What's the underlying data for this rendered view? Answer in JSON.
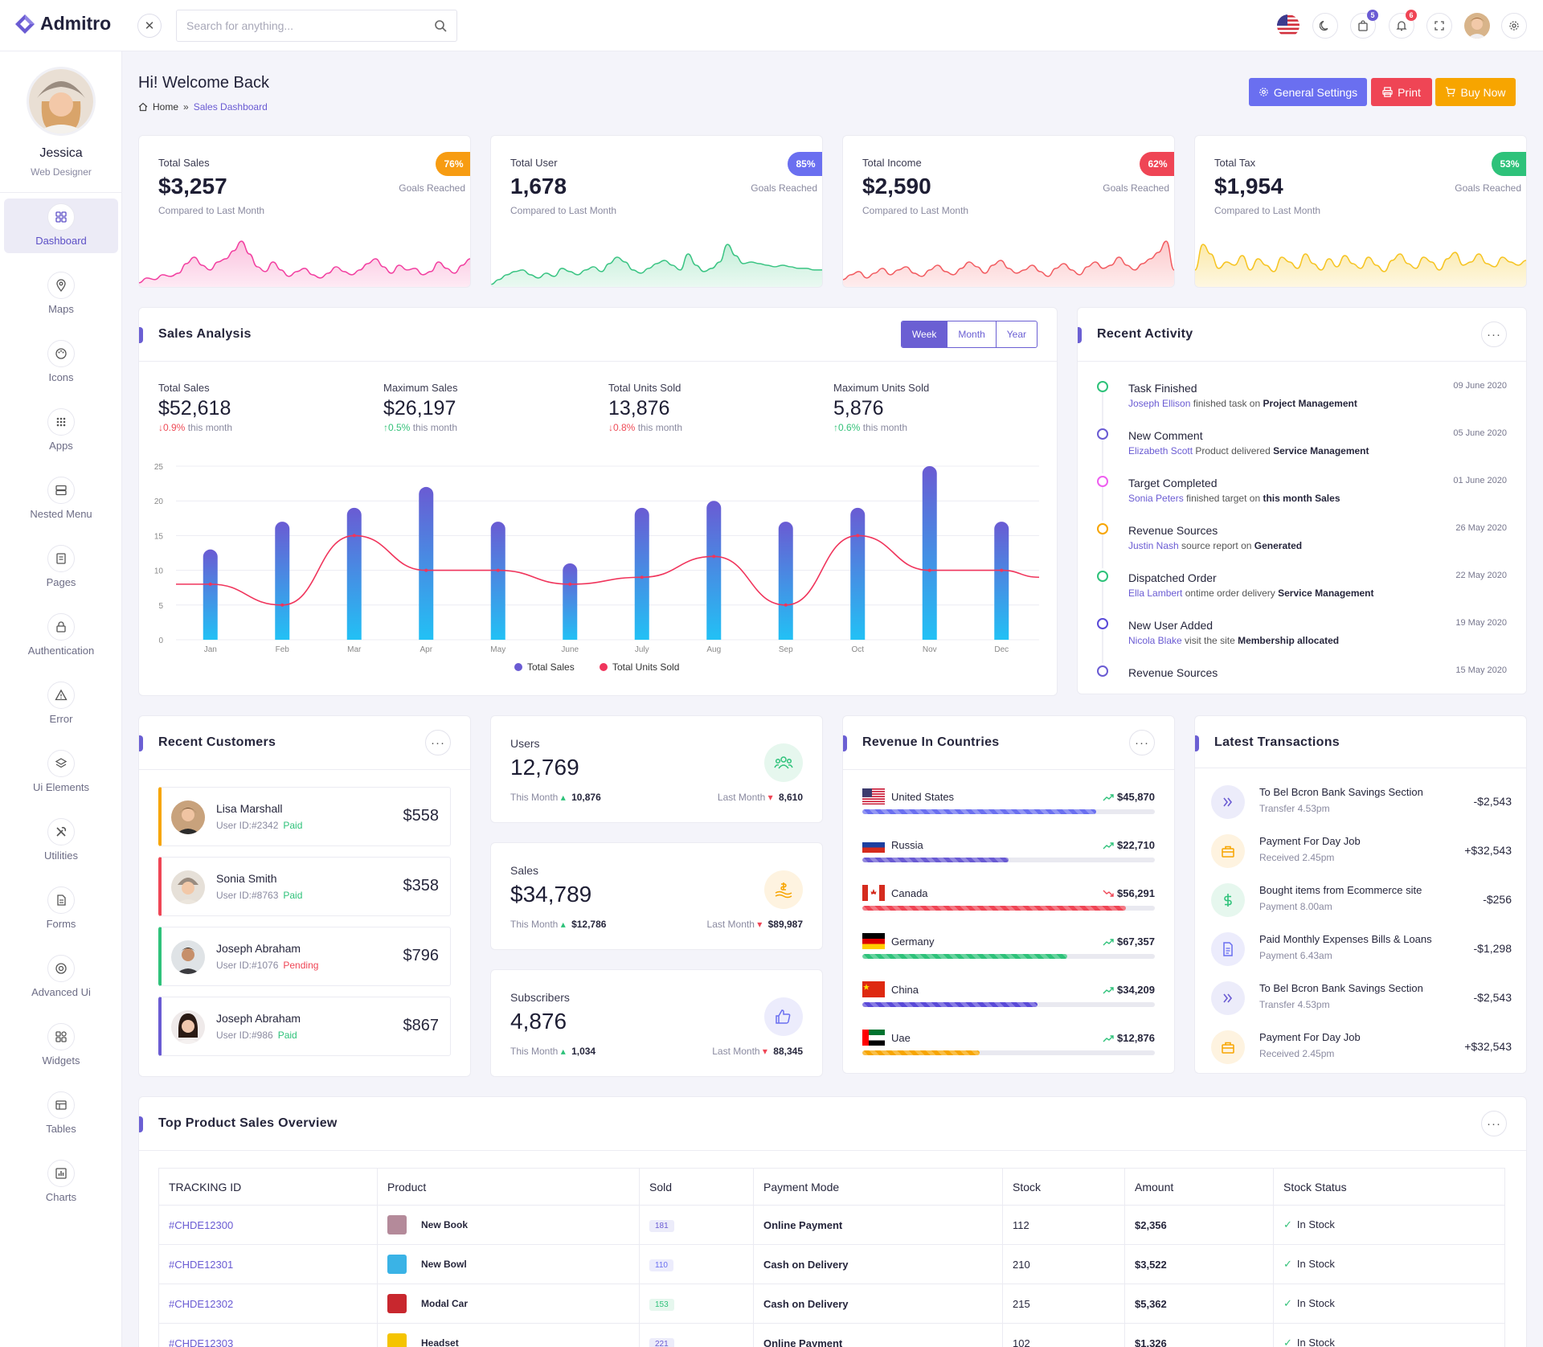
{
  "brand": {
    "name": "Admitro"
  },
  "header": {
    "search_placeholder": "Search for anything...",
    "cart_badge": "5",
    "notif_badge": "6"
  },
  "user": {
    "name": "Jessica",
    "role": "Web Designer"
  },
  "sidebar": {
    "items": [
      {
        "label": "Dashboard",
        "icon": "dashboard-icon",
        "active": true
      },
      {
        "label": "Maps",
        "icon": "map-pin-icon"
      },
      {
        "label": "Icons",
        "icon": "palette-icon"
      },
      {
        "label": "Apps",
        "icon": "apps-grid-icon"
      },
      {
        "label": "Nested Menu",
        "icon": "server-icon"
      },
      {
        "label": "Pages",
        "icon": "page-icon"
      },
      {
        "label": "Authentication",
        "icon": "lock-icon"
      },
      {
        "label": "Error",
        "icon": "warning-icon"
      },
      {
        "label": "Ui Elements",
        "icon": "layers-icon"
      },
      {
        "label": "Utilities",
        "icon": "tools-icon"
      },
      {
        "label": "Forms",
        "icon": "form-icon"
      },
      {
        "label": "Advanced Ui",
        "icon": "aperture-icon"
      },
      {
        "label": "Widgets",
        "icon": "widgets-icon"
      },
      {
        "label": "Tables",
        "icon": "table-icon"
      },
      {
        "label": "Charts",
        "icon": "chart-icon"
      }
    ]
  },
  "page": {
    "title": "Hi! Welcome Back",
    "breadcrumb": {
      "home": "Home",
      "sep": "»",
      "current": "Sales Dashboard"
    },
    "buttons": {
      "settings": "General Settings",
      "print": "Print",
      "buy": "Buy Now"
    }
  },
  "stats": [
    {
      "title": "Total Sales",
      "value": "$3,257",
      "sub": "Compared to Last Month",
      "badge": "76%",
      "goal": "Goals Reached",
      "color": "#f79c12",
      "spark_color": "#f23fa0",
      "spark_fill": "#fbc3df"
    },
    {
      "title": "Total User",
      "value": "1,678",
      "sub": "Compared to Last Month",
      "badge": "85%",
      "goal": "Goals Reached",
      "color": "#6a6ff0",
      "spark_color": "#3ac483",
      "spark_fill": "#c3eed8"
    },
    {
      "title": "Total Income",
      "value": "$2,590",
      "sub": "Compared to Last Month",
      "badge": "62%",
      "goal": "Goals Reached",
      "color": "#ef4555",
      "spark_color": "#f25c61",
      "spark_fill": "#fcc9cb"
    },
    {
      "title": "Total Tax",
      "value": "$1,954",
      "sub": "Compared to Last Month",
      "badge": "53%",
      "goal": "Goals Reached",
      "color": "#2ec27a",
      "spark_color": "#f6c421",
      "spark_fill": "#fbe9aa"
    }
  ],
  "sales_analysis": {
    "title": "Sales Analysis",
    "tabs": [
      "Week",
      "Month",
      "Year"
    ],
    "stats": [
      {
        "label": "Total Sales",
        "value": "$52,618",
        "change": "0.9%",
        "dir": "down",
        "suffix": "this month"
      },
      {
        "label": "Maximum Sales",
        "value": "$26,197",
        "change": "0.5%",
        "dir": "up",
        "suffix": "this month"
      },
      {
        "label": "Total Units Sold",
        "value": "13,876",
        "change": "0.8%",
        "dir": "down",
        "suffix": "this month"
      },
      {
        "label": "Maximum Units Sold",
        "value": "5,876",
        "change": "0.6%",
        "dir": "up",
        "suffix": "this month"
      }
    ]
  },
  "chart_data": {
    "type": "bar",
    "categories": [
      "Jan",
      "Feb",
      "Mar",
      "Apr",
      "May",
      "June",
      "July",
      "Aug",
      "Sep",
      "Oct",
      "Nov",
      "Dec"
    ],
    "series": [
      {
        "name": "Total Sales",
        "type": "bar",
        "values": [
          13,
          17,
          19,
          22,
          17,
          11,
          19,
          20,
          17,
          19,
          25,
          17
        ],
        "color": "#6a5bd3"
      },
      {
        "name": "Total Units Sold",
        "type": "line",
        "values": [
          8,
          5,
          15,
          10,
          10,
          8,
          9,
          12,
          5,
          15,
          10,
          10
        ],
        "color": "#f0355c"
      }
    ],
    "ylim": [
      0,
      25
    ],
    "yticks": [
      0,
      5,
      10,
      15,
      20,
      25
    ],
    "legend": "bottom",
    "grid": true
  },
  "activity": {
    "title": "Recent Activity",
    "items": [
      {
        "title": "Task Finished",
        "person": "Joseph Ellison",
        "text": "finished task on",
        "target": "Project Management",
        "date": "09 June 2020",
        "color": "#2ec27a"
      },
      {
        "title": "New Comment",
        "person": "Elizabeth Scott",
        "text": "Product delivered",
        "target": "Service Management",
        "date": "05 June 2020",
        "color": "#6a5bd3"
      },
      {
        "title": "Target Completed",
        "person": "Sonia Peters",
        "text": "finished target on",
        "target": "this month Sales",
        "date": "01 June 2020",
        "color": "#ee5ff0"
      },
      {
        "title": "Revenue Sources",
        "person": "Justin Nash",
        "text": "source report on",
        "target": "Generated",
        "date": "26 May 2020",
        "color": "#f7a500"
      },
      {
        "title": "Dispatched Order",
        "person": "Ella Lambert",
        "text": "ontime order delivery",
        "target": "Service Management",
        "date": "22 May 2020",
        "color": "#2ec27a"
      },
      {
        "title": "New User Added",
        "person": "Nicola Blake",
        "text": "visit the site",
        "target": "Membership allocated",
        "date": "19 May 2020",
        "color": "#5a4ad8"
      },
      {
        "title": "Revenue Sources",
        "person": "",
        "text": "",
        "target": "",
        "date": "15 May 2020",
        "color": "#6a5bd3"
      }
    ]
  },
  "customers": {
    "title": "Recent Customers",
    "items": [
      {
        "name": "Lisa Marshall",
        "id": "User ID:#2342",
        "status": "Paid",
        "amount": "$558",
        "color": "#f7a500"
      },
      {
        "name": "Sonia Smith",
        "id": "User ID:#8763",
        "status": "Paid",
        "amount": "$358",
        "color": "#ef4555"
      },
      {
        "name": "Joseph Abraham",
        "id": "User ID:#1076",
        "status": "Pending",
        "amount": "$796",
        "color": "#2ec27a"
      },
      {
        "name": "Joseph Abraham",
        "id": "User ID:#986",
        "status": "Paid",
        "amount": "$867",
        "color": "#6a5bd3"
      }
    ]
  },
  "mini_stats": [
    {
      "title": "Users",
      "value": "12,769",
      "this_label": "This Month",
      "this_val": "10,876",
      "this_dir": "up",
      "last_label": "Last Month",
      "last_val": "8,610",
      "last_dir": "down",
      "icon": "users-icon",
      "color": "#2ec27a",
      "bg": "#e6f7ee"
    },
    {
      "title": "Sales",
      "value": "$34,789",
      "this_label": "This Month",
      "this_val": "$12,786",
      "this_dir": "up",
      "last_label": "Last Month",
      "last_val": "$89,987",
      "last_dir": "down",
      "icon": "dollar-hand-icon",
      "color": "#f7a500",
      "bg": "#fef3e0"
    },
    {
      "title": "Subscribers",
      "value": "4,876",
      "this_label": "This Month",
      "this_val": "1,034",
      "this_dir": "up",
      "last_label": "Last Month",
      "last_val": "88,345",
      "last_dir": "down",
      "icon": "thumbs-up-icon",
      "color": "#6a6ff0",
      "bg": "#ececfc"
    }
  ],
  "countries": {
    "title": "Revenue In Countries",
    "items": [
      {
        "name": "United States",
        "value": "$45,870",
        "trend": "up",
        "progress": 0.8,
        "color": "#6a6ff0"
      },
      {
        "name": "Russia",
        "value": "$22,710",
        "trend": "up",
        "progress": 0.5,
        "color": "#6a5bd3"
      },
      {
        "name": "Canada",
        "value": "$56,291",
        "trend": "down",
        "progress": 0.9,
        "color": "#ef4555"
      },
      {
        "name": "Germany",
        "value": "$67,357",
        "trend": "up",
        "progress": 0.7,
        "color": "#2ec27a"
      },
      {
        "name": "China",
        "value": "$34,209",
        "trend": "up",
        "progress": 0.6,
        "color": "#5a4ad8"
      },
      {
        "name": "Uae",
        "value": "$12,876",
        "trend": "up",
        "progress": 0.4,
        "color": "#f7a500"
      }
    ]
  },
  "transactions": {
    "title": "Latest Transactions",
    "items": [
      {
        "title": "To Bel Bcron Bank",
        "title_b": "Savings Section",
        "sub": "Transfer 4.53pm",
        "amount": "-$2,543",
        "icon": "double-chevron-icon",
        "color": "#6a5bd3",
        "bg": "#ececfa"
      },
      {
        "title": "Payment For",
        "title_b": "Day Job",
        "sub": "Received 2.45pm",
        "amount": "+$32,543",
        "icon": "briefcase-icon",
        "color": "#f7a500",
        "bg": "#fef3e0"
      },
      {
        "title": "Bought items from",
        "title_b": "Ecommerce site",
        "sub": "Payment 8.00am",
        "amount": "-$256",
        "icon": "dollar-icon",
        "color": "#2ec27a",
        "bg": "#e6f7ee"
      },
      {
        "title": "Paid Monthly Expenses",
        "title_b": "Bills & Loans",
        "sub": "Payment 6.43am",
        "amount": "-$1,298",
        "icon": "document-icon",
        "color": "#6a6ff0",
        "bg": "#ececfc"
      },
      {
        "title": "To Bel Bcron Bank",
        "title_b": "Savings Section",
        "sub": "Transfer 4.53pm",
        "amount": "-$2,543",
        "icon": "double-chevron-icon",
        "color": "#6a5bd3",
        "bg": "#ececfa"
      },
      {
        "title": "Payment For",
        "title_b": "Day Job",
        "sub": "Received 2.45pm",
        "amount": "+$32,543",
        "icon": "briefcase-icon",
        "color": "#f7a500",
        "bg": "#fef3e0"
      }
    ]
  },
  "products": {
    "title": "Top Product Sales Overview",
    "columns": [
      "TRACKING ID",
      "Product",
      "Sold",
      "Payment Mode",
      "Stock",
      "Amount",
      "Stock Status"
    ],
    "rows": [
      {
        "id": "#CHDE12300",
        "product": "New Book",
        "sold": "181",
        "sold_color": "#6a5bd3",
        "sold_bg": "#ececfa",
        "mode": "Online Payment",
        "stock": "112",
        "amount": "$2,356",
        "status": "In Stock",
        "img": "#b48a9a"
      },
      {
        "id": "#CHDE12301",
        "product": "New Bowl",
        "sold": "110",
        "sold_color": "#6a6ff0",
        "sold_bg": "#ececfc",
        "mode": "Cash on Delivery",
        "stock": "210",
        "amount": "$3,522",
        "status": "In Stock",
        "img": "#3ab3e6"
      },
      {
        "id": "#CHDE12302",
        "product": "Modal Car",
        "sold": "153",
        "sold_color": "#2ec27a",
        "sold_bg": "#e6f7ee",
        "mode": "Cash on Delivery",
        "stock": "215",
        "amount": "$5,362",
        "status": "In Stock",
        "img": "#c8272e"
      },
      {
        "id": "#CHDE12303",
        "product": "Headset",
        "sold": "221",
        "sold_color": "#6a5bd3",
        "sold_bg": "#ececfa",
        "mode": "Online Payment",
        "stock": "102",
        "amount": "$1,326",
        "status": "In Stock",
        "img": "#f5c400"
      }
    ]
  }
}
